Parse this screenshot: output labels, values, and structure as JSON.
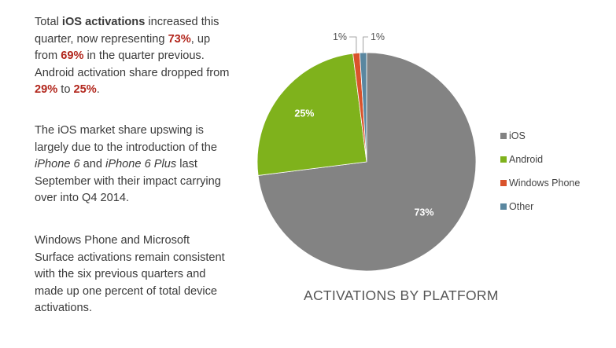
{
  "text": {
    "p1": {
      "a": "Total ",
      "b": "iOS activations",
      "c": " increased this quarter, now representing ",
      "d": "73%",
      "e": ", up from ",
      "f": "69%",
      "g": " in the quarter previous. Android activation share dropped from ",
      "h": "29%",
      "i": " to ",
      "j": "25%",
      "k": "."
    },
    "p2": {
      "a": "The iOS market share upswing is largely due to the introduction of the ",
      "b": "iPhone 6",
      "c": " and ",
      "d": "iPhone 6 Plus",
      "e": " last September with their impact carrying over into Q4 2014."
    },
    "p3": "Windows Phone and Microsoft Surface activations remain consistent with the six previous quarters and made up one percent of total device activations."
  },
  "colors": {
    "ios": "#838383",
    "android": "#7fb21c",
    "windows_phone": "#d9532c",
    "other": "#5a87a0",
    "highlight": "#b2261c"
  },
  "chart_data": {
    "type": "pie",
    "title": "ACTIVATIONS BY PLATFORM",
    "legend_position": "right",
    "series": [
      {
        "name": "iOS",
        "value": 73,
        "label": "73%",
        "color": "#838383"
      },
      {
        "name": "Android",
        "value": 25,
        "label": "25%",
        "color": "#7fb21c"
      },
      {
        "name": "Windows Phone",
        "value": 1,
        "label": "1%",
        "color": "#d9532c"
      },
      {
        "name": "Other",
        "value": 1,
        "label": "1%",
        "color": "#5a87a0"
      }
    ]
  }
}
